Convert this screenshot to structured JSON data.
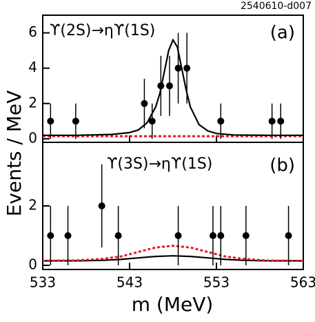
{
  "figure_id": "2540610-d007",
  "chart_data": [
    {
      "type": "scatter",
      "title": "ϒ(2S)→ηϒ(1S)",
      "panel_label": "(a)",
      "ylabel": "Events / MeV",
      "xlim": [
        533,
        563
      ],
      "xticks": [
        533,
        543,
        553,
        563
      ],
      "ylim": [
        -0.2,
        7.0
      ],
      "yticks": [
        0,
        2,
        4,
        6
      ],
      "points": {
        "color": "#000000",
        "x": [
          533.9,
          536.8,
          544.7,
          545.6,
          546.6,
          547.6,
          548.6,
          549.6,
          553.5,
          559.4,
          560.4
        ],
        "values": [
          1,
          1,
          2,
          1,
          3,
          3,
          4,
          4,
          1,
          1,
          1
        ],
        "errors": [
          1,
          1,
          1.4,
          1,
          1.7,
          1.7,
          2,
          2,
          1,
          1,
          1
        ]
      },
      "fits": [
        {
          "color": "#e8182b",
          "dashed": true,
          "x": [
            533,
            541,
            548,
            555,
            563
          ],
          "values": [
            0.15,
            0.15,
            0.15,
            0.15,
            0.15
          ]
        },
        {
          "color": "#000000",
          "dashed": false,
          "x": [
            533,
            537,
            541,
            543,
            544,
            545,
            546,
            546.5,
            547,
            547.5,
            548,
            548.5,
            549,
            549.5,
            550,
            551,
            552,
            553,
            555,
            559,
            563
          ],
          "values": [
            0.2,
            0.2,
            0.25,
            0.35,
            0.5,
            0.9,
            1.8,
            2.6,
            3.8,
            5.0,
            5.6,
            5.2,
            4.0,
            2.8,
            1.8,
            0.8,
            0.45,
            0.3,
            0.22,
            0.2,
            0.2
          ]
        }
      ]
    },
    {
      "type": "scatter",
      "title": "ϒ(3S)→ηϒ(1S)",
      "panel_label": "(b)",
      "xlabel": "m (MeV)",
      "xlim": [
        533,
        563
      ],
      "xticks": [
        533,
        543,
        553,
        563
      ],
      "ylim": [
        -0.14,
        4.14
      ],
      "yticks": [
        0,
        2
      ],
      "points": {
        "color": "#000000",
        "x": [
          533.9,
          535.9,
          539.8,
          541.7,
          548.6,
          552.6,
          553.5,
          556.4,
          561.3
        ],
        "values": [
          1,
          1,
          2,
          1,
          1,
          1,
          1,
          1,
          1
        ],
        "errors": [
          1,
          1,
          1.4,
          1,
          1,
          1,
          1,
          1,
          1
        ]
      },
      "fits": [
        {
          "color": "#000000",
          "dashed": false,
          "x": [
            533,
            537,
            540,
            542,
            544,
            546,
            548,
            550,
            552,
            554,
            556,
            559,
            563
          ],
          "values": [
            0.15,
            0.15,
            0.17,
            0.2,
            0.25,
            0.3,
            0.32,
            0.3,
            0.25,
            0.2,
            0.17,
            0.15,
            0.15
          ]
        },
        {
          "color": "#e8182b",
          "dashed": true,
          "x": [
            533,
            537,
            540,
            542,
            544,
            546,
            548,
            550,
            552,
            554,
            556,
            559,
            563
          ],
          "values": [
            0.15,
            0.17,
            0.22,
            0.3,
            0.45,
            0.6,
            0.66,
            0.6,
            0.45,
            0.3,
            0.22,
            0.16,
            0.15
          ]
        }
      ]
    }
  ]
}
